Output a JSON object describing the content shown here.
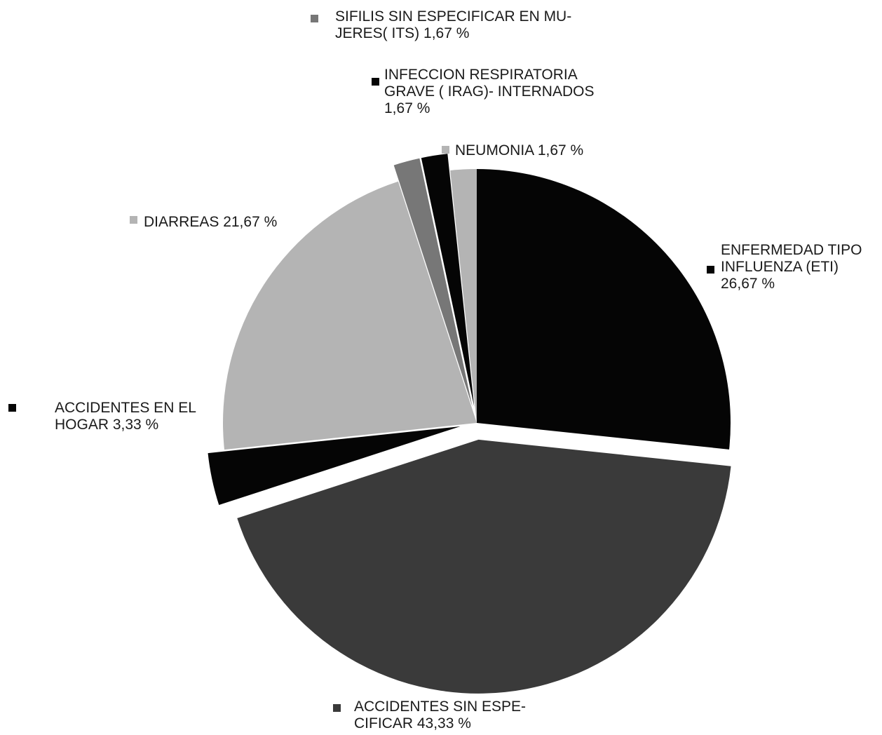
{
  "chart_data": {
    "type": "pie",
    "title": "",
    "colors": {
      "black": "#050505",
      "dark_gray": "#3a3a3a",
      "light_gray": "#b4b4b4",
      "mid_gray": "#777777"
    },
    "slices": [
      {
        "key": "eti",
        "label_lines": [
          "ENFERMEDAD TIPO",
          "INFLUENZA (ETI)",
          "26,67 %"
        ],
        "value": 26.67,
        "color": "#050505",
        "exploded": false
      },
      {
        "key": "accidentes-sin-especificar",
        "label_lines": [
          "ACCIDENTES SIN ESPE-",
          "CIFICAR 43,33 %"
        ],
        "value": 43.33,
        "color": "#3a3a3a",
        "exploded": true
      },
      {
        "key": "accidentes-hogar",
        "label_lines": [
          "ACCIDENTES EN EL",
          "HOGAR 3,33 %"
        ],
        "value": 3.33,
        "color": "#050505",
        "exploded": true
      },
      {
        "key": "diarreas",
        "label_lines": [
          "DIARREAS 21,67 %"
        ],
        "value": 21.67,
        "color": "#b4b4b4",
        "exploded": false
      },
      {
        "key": "sifilis",
        "label_lines": [
          "SIFILIS SIN ESPECIFICAR EN MU-",
          "JERES( ITS) 1,67 %"
        ],
        "value": 1.67,
        "color": "#777777",
        "exploded": true
      },
      {
        "key": "irag",
        "label_lines": [
          "INFECCION RESPIRATORIA",
          "GRAVE ( IRAG)- INTERNADOS",
          "1,67 %"
        ],
        "value": 1.67,
        "color": "#050505",
        "exploded": true
      },
      {
        "key": "neumonia",
        "label_lines": [
          "NEUMONIA 1,67 %"
        ],
        "value": 1.67,
        "color": "#b4b4b4",
        "exploded": false
      }
    ]
  }
}
